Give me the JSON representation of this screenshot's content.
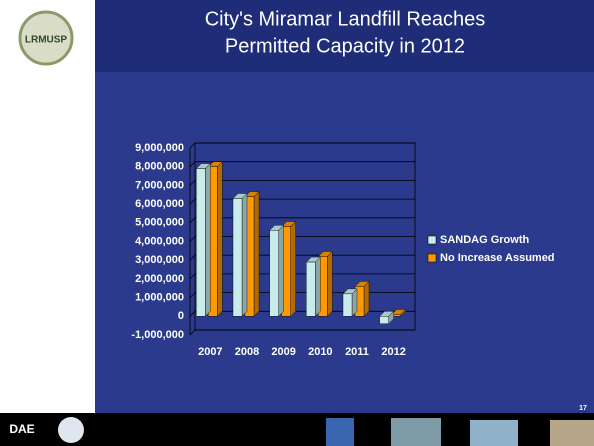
{
  "logo_text": "LRMUSP",
  "footer_logo_text": "DAE",
  "page_number": "17",
  "chart_data": {
    "type": "bar",
    "title": [
      "City's Miramar Landfill Reaches",
      "Permitted Capacity in 2012"
    ],
    "categories": [
      "2007",
      "2008",
      "2009",
      "2010",
      "2011",
      "2012"
    ],
    "series": [
      {
        "name": "SANDAG Growth",
        "color": "#c8ecec",
        "values": [
          7900000,
          6300000,
          4600000,
          2900000,
          1200000,
          -400000
        ]
      },
      {
        "name": "No Increase Assumed",
        "color": "#ff9900",
        "values": [
          8000000,
          6400000,
          4800000,
          3200000,
          1600000,
          100000
        ]
      }
    ],
    "ylim": [
      -1000000,
      9000000
    ],
    "yticks": [
      {
        "value": -1000000,
        "label": "-1,000,000"
      },
      0,
      {
        "value": 1000000,
        "label": "1,000,000"
      },
      {
        "value": 2000000,
        "label": "2,000,000"
      },
      {
        "value": 3000000,
        "label": "3,000,000"
      },
      {
        "value": 4000000,
        "label": "4,000,000"
      },
      {
        "value": 5000000,
        "label": "5,000,000"
      },
      {
        "value": 6000000,
        "label": "6,000,000"
      },
      {
        "value": 7000000,
        "label": "7,000,000"
      },
      {
        "value": 8000000,
        "label": "8,000,000"
      },
      {
        "value": 9000000,
        "label": "9,000,000"
      }
    ],
    "grid": true,
    "legend": "right"
  }
}
